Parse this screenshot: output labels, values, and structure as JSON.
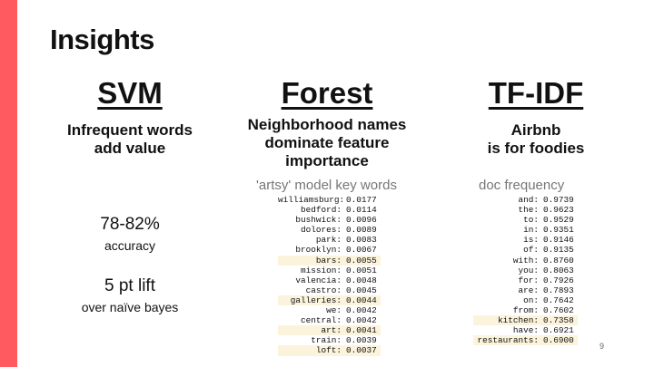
{
  "slide": {
    "title": "Insights",
    "page_number": "9",
    "accent_color": "#ff5a5f",
    "highlight_color": "#fbf3dc"
  },
  "svm": {
    "heading": "SVM",
    "subtitle": "Infrequent words\nadd value",
    "stat1": {
      "value": "78-82%",
      "label": "accuracy"
    },
    "stat2": {
      "value": "5 pt lift",
      "label": "over naïve bayes"
    }
  },
  "forest": {
    "heading": "Forest",
    "subtitle": "Neighborhood names\ndominate feature\nimportance",
    "caption": "'artsy' model key words",
    "rows": [
      {
        "word": "williamsburg:",
        "value": "0.0177",
        "highlight": false
      },
      {
        "word": "bedford:",
        "value": "0.0114",
        "highlight": false
      },
      {
        "word": "bushwick:",
        "value": "0.0096",
        "highlight": false
      },
      {
        "word": "dolores:",
        "value": "0.0089",
        "highlight": false
      },
      {
        "word": "park:",
        "value": "0.0083",
        "highlight": false
      },
      {
        "word": "brooklyn:",
        "value": "0.0067",
        "highlight": false
      },
      {
        "word": "bars:",
        "value": "0.0055",
        "highlight": true
      },
      {
        "word": "mission:",
        "value": "0.0051",
        "highlight": false
      },
      {
        "word": "valencia:",
        "value": "0.0048",
        "highlight": false
      },
      {
        "word": "castro:",
        "value": "0.0045",
        "highlight": false
      },
      {
        "word": "galleries:",
        "value": "0.0044",
        "highlight": true
      },
      {
        "word": "we:",
        "value": "0.0042",
        "highlight": false
      },
      {
        "word": "central:",
        "value": "0.0042",
        "highlight": false
      },
      {
        "word": "art:",
        "value": "0.0041",
        "highlight": true
      },
      {
        "word": "train:",
        "value": "0.0039",
        "highlight": false
      },
      {
        "word": "loft:",
        "value": "0.0037",
        "highlight": true
      }
    ]
  },
  "tfidf": {
    "heading": "TF-IDF",
    "subtitle": "Airbnb\nis for foodies",
    "caption": "doc frequency",
    "rows": [
      {
        "word": "and:",
        "value": "0.9739",
        "highlight": false
      },
      {
        "word": "the:",
        "value": "0.9623",
        "highlight": false
      },
      {
        "word": "to:",
        "value": "0.9529",
        "highlight": false
      },
      {
        "word": "in:",
        "value": "0.9351",
        "highlight": false
      },
      {
        "word": "is:",
        "value": "0.9146",
        "highlight": false
      },
      {
        "word": "of:",
        "value": "0.9135",
        "highlight": false
      },
      {
        "word": "with:",
        "value": "0.8760",
        "highlight": false
      },
      {
        "word": "you:",
        "value": "0.8063",
        "highlight": false
      },
      {
        "word": "for:",
        "value": "0.7926",
        "highlight": false
      },
      {
        "word": "are:",
        "value": "0.7893",
        "highlight": false
      },
      {
        "word": "on:",
        "value": "0.7642",
        "highlight": false
      },
      {
        "word": "from:",
        "value": "0.7602",
        "highlight": false
      },
      {
        "word": "kitchen:",
        "value": "0.7358",
        "highlight": true
      },
      {
        "word": "have:",
        "value": "0.6921",
        "highlight": false
      },
      {
        "word": "restaurants:",
        "value": "0.6900",
        "highlight": true
      }
    ]
  }
}
